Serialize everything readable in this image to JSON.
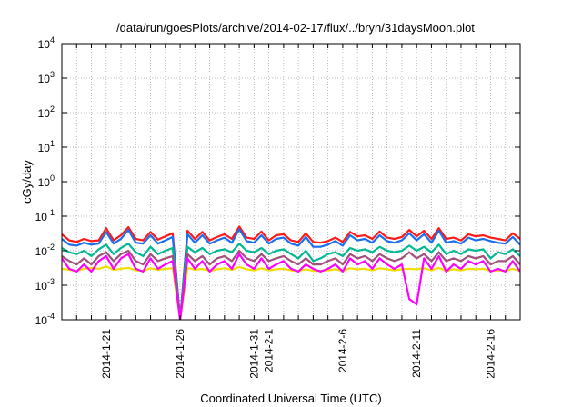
{
  "chart_data": {
    "type": "line",
    "title": "/data/run/goesPlots/archive/2014-02-17/flux/../bryn/31daysMoon.plot",
    "xlabel": "Coordinated Universal Time (UTC)",
    "ylabel": "cGy/day",
    "yscale": "log",
    "ylim": [
      0.0001,
      10000
    ],
    "xlim_days": [
      0,
      31
    ],
    "x_start_date": "2014-01-18",
    "x_step_days": 0.5,
    "grid": true,
    "y_ticks": [
      {
        "base": "10",
        "exp": "4",
        "value": 10000
      },
      {
        "base": "10",
        "exp": "3",
        "value": 1000
      },
      {
        "base": "10",
        "exp": "2",
        "value": 100
      },
      {
        "base": "10",
        "exp": "1",
        "value": 10
      },
      {
        "base": "10",
        "exp": "0",
        "value": 1
      },
      {
        "base": "10",
        "exp": "-1",
        "value": 0.1
      },
      {
        "base": "10",
        "exp": "-2",
        "value": 0.01
      },
      {
        "base": "10",
        "exp": "-3",
        "value": 0.001
      },
      {
        "base": "10",
        "exp": "-4",
        "value": 0.0001
      }
    ],
    "x_ticks": [
      {
        "label": "2014-1-21",
        "day": 3
      },
      {
        "label": "2014-1-26",
        "day": 8
      },
      {
        "label": "2014-1-31",
        "day": 13
      },
      {
        "label": "2014-2-1",
        "day": 14
      },
      {
        "label": "2014-2-6",
        "day": 19
      },
      {
        "label": "2014-2-11",
        "day": 24
      },
      {
        "label": "2014-2-16",
        "day": 29
      }
    ],
    "series": [
      {
        "name": "red",
        "color": "#ff1a1a",
        "values": [
          0.03,
          0.02,
          0.018,
          0.022,
          0.019,
          0.02,
          0.045,
          0.02,
          0.028,
          0.048,
          0.022,
          0.02,
          0.035,
          0.021,
          0.026,
          0.032,
          0.0001,
          0.038,
          0.022,
          0.035,
          0.02,
          0.025,
          0.03,
          0.022,
          0.05,
          0.024,
          0.022,
          0.036,
          0.02,
          0.028,
          0.03,
          0.02,
          0.018,
          0.032,
          0.018,
          0.017,
          0.019,
          0.024,
          0.018,
          0.035,
          0.026,
          0.028,
          0.022,
          0.036,
          0.024,
          0.022,
          0.025,
          0.04,
          0.026,
          0.038,
          0.022,
          0.045,
          0.022,
          0.024,
          0.02,
          0.03,
          0.026,
          0.028,
          0.024,
          0.022,
          0.02,
          0.032,
          0.022
        ]
      },
      {
        "name": "blue",
        "color": "#1a6ff0",
        "values": [
          0.022,
          0.015,
          0.014,
          0.017,
          0.015,
          0.016,
          0.035,
          0.016,
          0.022,
          0.04,
          0.017,
          0.016,
          0.028,
          0.016,
          0.02,
          0.025,
          0.0001,
          0.03,
          0.017,
          0.028,
          0.016,
          0.02,
          0.024,
          0.017,
          0.042,
          0.019,
          0.017,
          0.028,
          0.016,
          0.022,
          0.024,
          0.016,
          0.014,
          0.025,
          0.013,
          0.013,
          0.015,
          0.019,
          0.014,
          0.028,
          0.02,
          0.022,
          0.017,
          0.028,
          0.019,
          0.017,
          0.02,
          0.032,
          0.02,
          0.03,
          0.017,
          0.038,
          0.017,
          0.019,
          0.016,
          0.024,
          0.02,
          0.022,
          0.019,
          0.017,
          0.016,
          0.025,
          0.015
        ]
      },
      {
        "name": "teal",
        "color": "#00b894",
        "values": [
          0.012,
          0.009,
          0.008,
          0.01,
          0.007,
          0.011,
          0.015,
          0.008,
          0.012,
          0.016,
          0.009,
          0.007,
          0.013,
          0.008,
          0.01,
          0.012,
          0.0001,
          0.013,
          0.009,
          0.012,
          0.008,
          0.01,
          0.011,
          0.009,
          0.016,
          0.01,
          0.009,
          0.012,
          0.008,
          0.01,
          0.011,
          0.008,
          0.006,
          0.01,
          0.005,
          0.006,
          0.008,
          0.009,
          0.007,
          0.012,
          0.01,
          0.011,
          0.009,
          0.013,
          0.01,
          0.009,
          0.01,
          0.014,
          0.01,
          0.013,
          0.009,
          0.015,
          0.008,
          0.01,
          0.008,
          0.011,
          0.01,
          0.011,
          0.006,
          0.009,
          0.008,
          0.011,
          0.007
        ]
      },
      {
        "name": "brown",
        "color": "#a0507a",
        "values": [
          0.007,
          0.005,
          0.004,
          0.006,
          0.004,
          0.007,
          0.009,
          0.005,
          0.008,
          0.01,
          0.005,
          0.004,
          0.008,
          0.005,
          0.006,
          0.007,
          0.0001,
          0.008,
          0.005,
          0.007,
          0.004,
          0.006,
          0.007,
          0.005,
          0.01,
          0.006,
          0.005,
          0.008,
          0.005,
          0.006,
          0.007,
          0.005,
          0.004,
          0.006,
          0.004,
          0.004,
          0.005,
          0.006,
          0.004,
          0.008,
          0.006,
          0.007,
          0.005,
          0.008,
          0.006,
          0.005,
          0.006,
          0.009,
          0.006,
          0.008,
          0.005,
          0.009,
          0.005,
          0.006,
          0.005,
          0.007,
          0.006,
          0.007,
          0.004,
          0.005,
          0.005,
          0.007,
          0.004
        ]
      },
      {
        "name": "yellow",
        "color": "#f0e000",
        "values": [
          0.003,
          0.0028,
          0.0026,
          0.003,
          0.0032,
          0.003,
          0.0035,
          0.0028,
          0.003,
          0.0032,
          0.0027,
          0.0026,
          0.0031,
          0.0028,
          0.003,
          0.0031,
          0.0001,
          0.0032,
          0.0028,
          0.003,
          0.0026,
          0.0029,
          0.0031,
          0.0028,
          0.0034,
          0.0029,
          0.0027,
          0.0031,
          0.0027,
          0.0029,
          0.003,
          0.0027,
          0.0026,
          0.0029,
          0.0026,
          0.0026,
          0.0027,
          0.0029,
          0.0026,
          0.0031,
          0.0029,
          0.003,
          0.0027,
          0.0031,
          0.0029,
          0.0027,
          0.0029,
          0.003,
          0.0029,
          0.0031,
          0.0027,
          0.0032,
          0.0026,
          0.0029,
          0.0027,
          0.003,
          0.0029,
          0.003,
          0.0026,
          0.0027,
          0.0026,
          0.003,
          0.0026
        ]
      },
      {
        "name": "magenta",
        "color": "#ff00ff",
        "values": [
          0.006,
          0.003,
          0.0025,
          0.004,
          0.0025,
          0.005,
          0.007,
          0.003,
          0.006,
          0.008,
          0.003,
          0.0025,
          0.006,
          0.003,
          0.004,
          0.005,
          0.0001,
          0.006,
          0.003,
          0.005,
          0.0025,
          0.004,
          0.005,
          0.003,
          0.008,
          0.004,
          0.003,
          0.006,
          0.003,
          0.004,
          0.005,
          0.003,
          0.0025,
          0.004,
          0.003,
          0.0025,
          0.003,
          0.004,
          0.0025,
          0.006,
          0.004,
          0.005,
          0.003,
          0.006,
          0.004,
          0.003,
          0.004,
          0.0004,
          0.00028,
          0.006,
          0.003,
          0.007,
          0.0025,
          0.004,
          0.003,
          0.005,
          0.004,
          0.005,
          0.0025,
          0.003,
          0.0025,
          0.005,
          0.0025
        ]
      }
    ]
  }
}
